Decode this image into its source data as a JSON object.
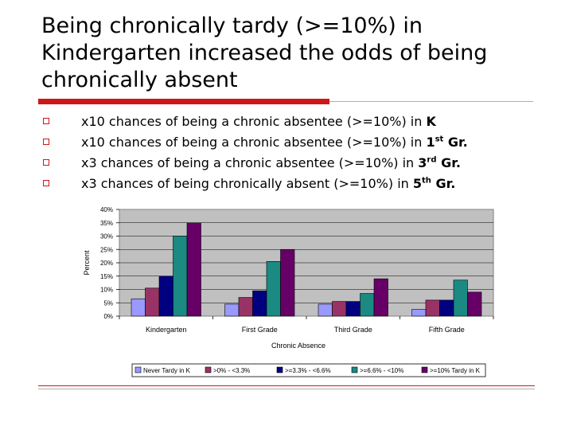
{
  "slide": {
    "title": "Being chronically tardy (>=10%) in\nKindergarten increased the odds of being\nchronically absent",
    "bullets": [
      {
        "text": "x10 chances of being a chronic absentee (>=10%) in ",
        "grade": "K",
        "sup": ""
      },
      {
        "text": "x10 chances of being a chronic absentee (>=10%) in ",
        "grade": "1",
        "sup": "st",
        "suffix": " Gr."
      },
      {
        "text": "x3 chances of being a chronic absentee (>=10%) in ",
        "grade": "3",
        "sup": "rd",
        "suffix": " Gr."
      },
      {
        "text": "x3 chances of being chronically absent (>=10%) in ",
        "grade": "5",
        "sup": "th",
        "suffix": " Gr."
      }
    ],
    "colors": {
      "accent": "#cc1818",
      "plot_bg": "#c0c0c0"
    }
  },
  "chart_data": {
    "type": "bar",
    "categories": [
      "Kindergarten",
      "First Grade",
      "Third Grade",
      "Fifth Grade"
    ],
    "series": [
      {
        "name": "Never Tardy in K",
        "color": "#9999ff",
        "values": [
          6.5,
          4.5,
          4.5,
          2.5
        ]
      },
      {
        "name": ">0% - <3.3%",
        "color": "#993366",
        "values": [
          10.5,
          7,
          5.5,
          6
        ]
      },
      {
        "name": ">=3.3% - <6.6%",
        "color": "#000080",
        "values": [
          15,
          9.5,
          5.5,
          6
        ]
      },
      {
        "name": ">=6.6% - <10%",
        "color": "#1b8a82",
        "values": [
          30,
          20.5,
          8.5,
          13.5
        ]
      },
      {
        "name": ">=10% Tardy in K",
        "color": "#660066",
        "values": [
          35,
          25,
          14,
          9
        ]
      }
    ],
    "title": "",
    "xlabel": "Chronic Absence",
    "ylabel": "Percent",
    "ylim": [
      0,
      40
    ],
    "yticks": [
      "0%",
      "5%",
      "10%",
      "15%",
      "20%",
      "25%",
      "30%",
      "35%",
      "40%"
    ],
    "grid": true,
    "legend": "bottom"
  }
}
